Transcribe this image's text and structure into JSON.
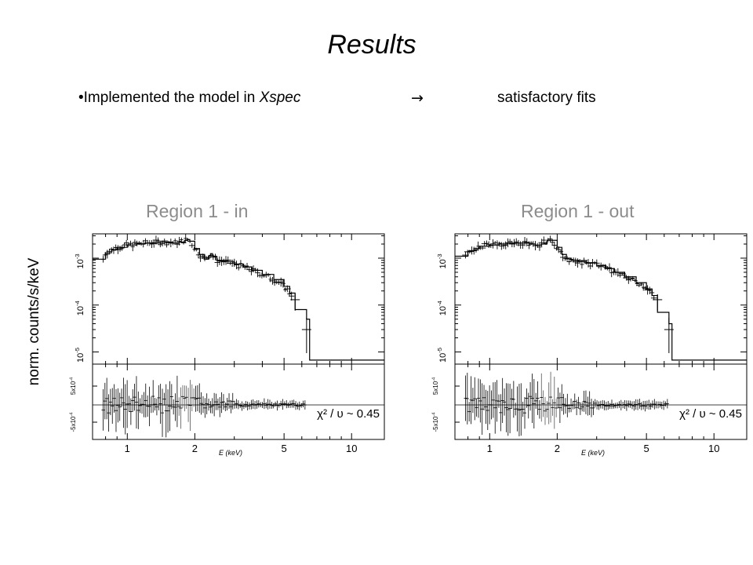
{
  "slide": {
    "title": "Results",
    "bullet_prefix": "•Implemented the model in ",
    "bullet_italic": "Xspec",
    "arrow": "→",
    "result": "satisfactory fits"
  },
  "ylabel": "norm. counts/s/keV",
  "chart_data": [
    {
      "type": "line",
      "title": "Region 1 - in",
      "xlabel": "E (keV)",
      "x_scale": "log",
      "xlim": [
        0.7,
        14
      ],
      "x_ticks": [
        1,
        2,
        5,
        10
      ],
      "x_tick_labels": [
        "1",
        "2",
        "5",
        "10"
      ],
      "top_panel": {
        "y_scale": "log",
        "ylim": [
          5.5e-06,
          0.0033
        ],
        "y_ticks": [
          0.001,
          0.0001,
          1e-05
        ],
        "y_tick_labels": [
          "10⁻³",
          "10⁻⁴",
          "10⁻⁵"
        ],
        "series": [
          {
            "x": [
              0.7,
              0.78,
              0.8,
              0.85,
              0.9,
              1.0,
              1.1,
              1.2,
              1.3,
              1.4,
              1.5,
              1.6,
              1.7,
              1.8,
              1.85,
              1.9,
              2.0,
              2.1,
              2.2,
              2.3,
              2.35,
              2.4,
              2.5,
              2.7,
              3.0,
              3.3,
              3.6,
              4.0,
              4.5,
              5.0,
              5.3,
              5.6,
              5.6,
              6.3,
              6.3,
              6.5,
              6.5,
              14
            ],
            "y": [
              0.00095,
              0.00095,
              0.0013,
              0.0015,
              0.0017,
              0.0019,
              0.002,
              0.0021,
              0.00215,
              0.0022,
              0.0022,
              0.0021,
              0.0022,
              0.0024,
              0.0025,
              0.0023,
              0.0016,
              0.0012,
              0.00095,
              0.0011,
              0.00125,
              0.0011,
              0.0009,
              0.00085,
              0.00075,
              0.00065,
              0.00055,
              0.00045,
              0.00035,
              0.00025,
              0.00018,
              0.00015,
              8e-05,
              8e-05,
              5e-05,
              5e-05,
              6.7e-06,
              6.7e-06
            ]
          }
        ]
      },
      "bottom_panel": {
        "y_tick_labels": [
          "5x10⁻⁴",
          "-5x10⁻⁴"
        ],
        "annotation": "χ² / υ  ~ 0.45"
      }
    },
    {
      "type": "line",
      "title": "Region 1 - out",
      "xlabel": "E (keV)",
      "x_scale": "log",
      "xlim": [
        0.7,
        14
      ],
      "x_ticks": [
        1,
        2,
        5,
        10
      ],
      "x_tick_labels": [
        "1",
        "2",
        "5",
        "10"
      ],
      "top_panel": {
        "y_scale": "log",
        "ylim": [
          5.5e-06,
          0.0033
        ],
        "y_ticks": [
          0.001,
          0.0001,
          1e-05
        ],
        "y_tick_labels": [
          "10⁻³",
          "10⁻⁴",
          "10⁻⁵"
        ],
        "series": [
          {
            "x": [
              0.7,
              0.78,
              0.8,
              0.85,
              0.9,
              1.0,
              1.1,
              1.2,
              1.3,
              1.4,
              1.5,
              1.6,
              1.7,
              1.8,
              1.9,
              2.0,
              2.1,
              2.2,
              2.3,
              2.5,
              2.7,
              3.0,
              3.3,
              3.6,
              4.0,
              4.5,
              5.0,
              5.3,
              5.6,
              5.6,
              6.3,
              6.3,
              6.5,
              6.5,
              14
            ],
            "y": [
              0.0011,
              0.0011,
              0.0014,
              0.0016,
              0.0018,
              0.0019,
              0.002,
              0.0021,
              0.0021,
              0.0021,
              0.002,
              0.0019,
              0.002,
              0.0024,
              0.0024,
              0.0017,
              0.0012,
              0.001,
              0.0009,
              0.00085,
              0.0008,
              0.0007,
              0.0006,
              0.0005,
              0.0004,
              0.0003,
              0.00022,
              0.00016,
              0.00013,
              7e-05,
              7e-05,
              4e-05,
              4e-05,
              6.7e-06,
              6.7e-06
            ]
          }
        ]
      },
      "bottom_panel": {
        "y_tick_labels": [
          "5x10⁻⁴",
          "-5x10⁻⁴"
        ],
        "annotation": "χ² / υ  ~ 0.45"
      }
    }
  ]
}
